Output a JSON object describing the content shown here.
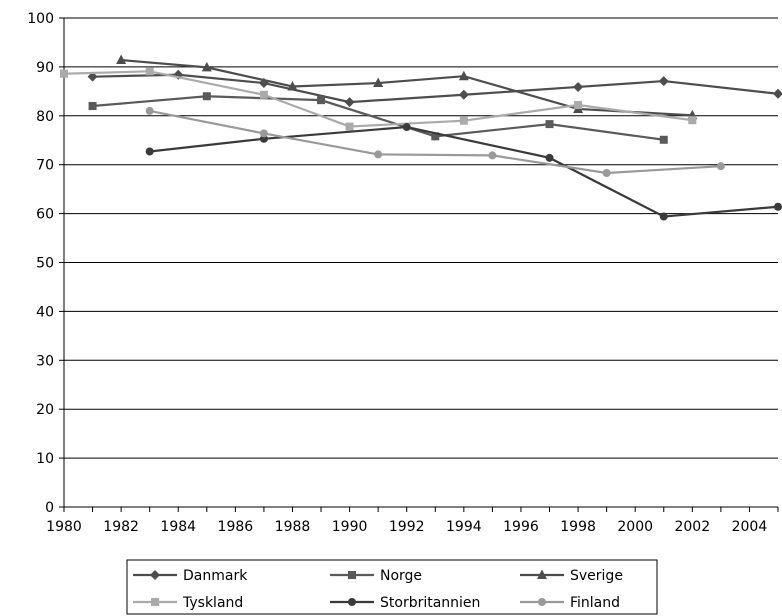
{
  "chart_data": {
    "type": "line",
    "title": "",
    "xlabel": "",
    "ylabel": "",
    "xlim": [
      1980,
      2005
    ],
    "ylim": [
      0,
      100
    ],
    "xticks": [
      1980,
      1982,
      1984,
      1986,
      1988,
      1990,
      1992,
      1994,
      1996,
      1998,
      2000,
      2002,
      2004
    ],
    "yticks": [
      0,
      10,
      20,
      30,
      40,
      50,
      60,
      70,
      80,
      90,
      100
    ],
    "grid": "horizontal",
    "legend_position": "bottom",
    "series": [
      {
        "name": "Danmark",
        "color": "#4d4d4d",
        "marker": "diamond",
        "points": [
          [
            1981,
            88
          ],
          [
            1984,
            88.4
          ],
          [
            1987,
            86.7
          ],
          [
            1990,
            82.8
          ],
          [
            1994,
            84.3
          ],
          [
            1998,
            85.9
          ],
          [
            2001,
            87.1
          ],
          [
            2005,
            84.5
          ]
        ]
      },
      {
        "name": "Norge",
        "color": "#5a5a5a",
        "marker": "square",
        "points": [
          [
            1981,
            82.0
          ],
          [
            1985,
            84.0
          ],
          [
            1989,
            83.2
          ],
          [
            1993,
            75.8
          ],
          [
            1997,
            78.3
          ],
          [
            2001,
            75.1
          ]
        ]
      },
      {
        "name": "Sverige",
        "color": "#4d4d4d",
        "marker": "triangle",
        "points": [
          [
            1982,
            91.4
          ],
          [
            1985,
            89.9
          ],
          [
            1988,
            86.0
          ],
          [
            1991,
            86.7
          ],
          [
            1994,
            88.1
          ],
          [
            1998,
            81.4
          ],
          [
            2002,
            80.1
          ]
        ]
      },
      {
        "name": "Tyskland",
        "color": "#aaaaaa",
        "marker": "square",
        "points": [
          [
            1980,
            88.6
          ],
          [
            1983,
            89.1
          ],
          [
            1987,
            84.3
          ],
          [
            1990,
            77.8
          ],
          [
            1994,
            79.0
          ],
          [
            1998,
            82.2
          ],
          [
            2002,
            79.1
          ]
        ]
      },
      {
        "name": "Storbritannien",
        "color": "#3a3a3a",
        "marker": "circle",
        "points": [
          [
            1983,
            72.7
          ],
          [
            1987,
            75.3
          ],
          [
            1992,
            77.7
          ],
          [
            1997,
            71.4
          ],
          [
            2001,
            59.4
          ],
          [
            2005,
            61.4
          ]
        ]
      },
      {
        "name": "Finland",
        "color": "#999999",
        "marker": "circle",
        "points": [
          [
            1983,
            81.0
          ],
          [
            1987,
            76.4
          ],
          [
            1991,
            72.1
          ],
          [
            1995,
            71.9
          ],
          [
            1999,
            68.3
          ],
          [
            2003,
            69.7
          ]
        ]
      }
    ]
  }
}
